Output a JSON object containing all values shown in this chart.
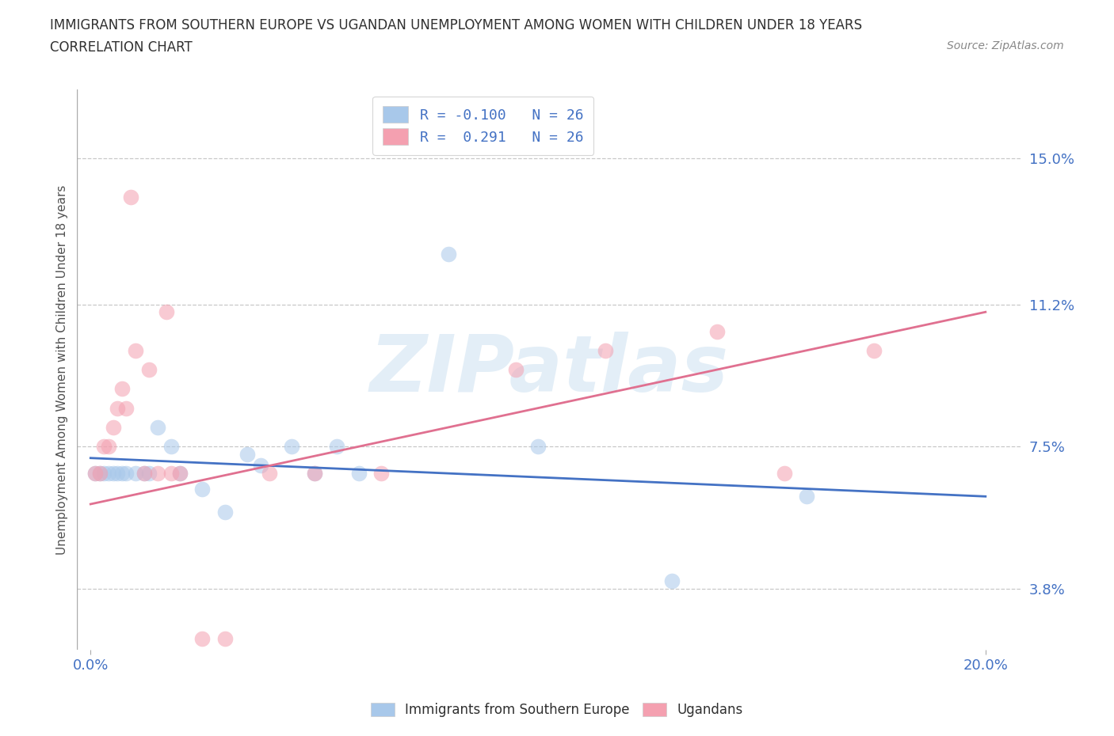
{
  "title_line1": "IMMIGRANTS FROM SOUTHERN EUROPE VS UGANDAN UNEMPLOYMENT AMONG WOMEN WITH CHILDREN UNDER 18 YEARS",
  "title_line2": "CORRELATION CHART",
  "source": "Source: ZipAtlas.com",
  "ylabel_ticks": [
    "3.8%",
    "7.5%",
    "11.2%",
    "15.0%"
  ],
  "ylim": [
    0.022,
    0.168
  ],
  "xlim": [
    -0.003,
    0.208
  ],
  "ytick_vals": [
    0.038,
    0.075,
    0.112,
    0.15
  ],
  "xtick_vals": [
    0.0,
    0.2
  ],
  "xlabel_labels": [
    "0.0%",
    "20.0%"
  ],
  "watermark": "ZIPatlas",
  "legend_entries": [
    {
      "label": "R = -0.100   N = 26",
      "color": "#a8c8ea"
    },
    {
      "label": "R =  0.291   N = 26",
      "color": "#f4a0b0"
    }
  ],
  "blue_scatter_x": [
    0.001,
    0.002,
    0.003,
    0.004,
    0.005,
    0.006,
    0.007,
    0.008,
    0.01,
    0.012,
    0.013,
    0.015,
    0.018,
    0.02,
    0.025,
    0.03,
    0.035,
    0.038,
    0.045,
    0.05,
    0.055,
    0.06,
    0.08,
    0.1,
    0.13,
    0.16
  ],
  "blue_scatter_y": [
    0.068,
    0.068,
    0.068,
    0.068,
    0.068,
    0.068,
    0.068,
    0.068,
    0.068,
    0.068,
    0.068,
    0.08,
    0.075,
    0.068,
    0.064,
    0.058,
    0.073,
    0.07,
    0.075,
    0.068,
    0.075,
    0.068,
    0.125,
    0.075,
    0.04,
    0.062
  ],
  "pink_scatter_x": [
    0.001,
    0.002,
    0.003,
    0.004,
    0.005,
    0.006,
    0.007,
    0.008,
    0.009,
    0.01,
    0.012,
    0.013,
    0.015,
    0.017,
    0.018,
    0.02,
    0.025,
    0.03,
    0.04,
    0.05,
    0.065,
    0.095,
    0.115,
    0.14,
    0.155,
    0.175
  ],
  "pink_scatter_y": [
    0.068,
    0.068,
    0.075,
    0.075,
    0.08,
    0.085,
    0.09,
    0.085,
    0.14,
    0.1,
    0.068,
    0.095,
    0.068,
    0.11,
    0.068,
    0.068,
    0.025,
    0.025,
    0.068,
    0.068,
    0.068,
    0.095,
    0.1,
    0.105,
    0.068,
    0.1
  ],
  "blue_line_x": [
    0.0,
    0.2
  ],
  "blue_line_y": [
    0.072,
    0.062
  ],
  "pink_line_x": [
    0.0,
    0.2
  ],
  "pink_line_y": [
    0.06,
    0.11
  ],
  "scatter_size": 200,
  "scatter_alpha": 0.55,
  "blue_color": "#a8c8ea",
  "pink_color": "#f4a0b0",
  "blue_line_color": "#4472c4",
  "pink_line_color": "#e07090",
  "bg_color": "#ffffff",
  "grid_color": "#c8c8c8",
  "title_color": "#303030",
  "axis_label_color": "#4472c4",
  "ylabel": "Unemployment Among Women with Children Under 18 years",
  "title_fontsize": 12,
  "subtitle_fontsize": 12,
  "source_fontsize": 10,
  "tick_fontsize": 13,
  "legend_fontsize": 13
}
